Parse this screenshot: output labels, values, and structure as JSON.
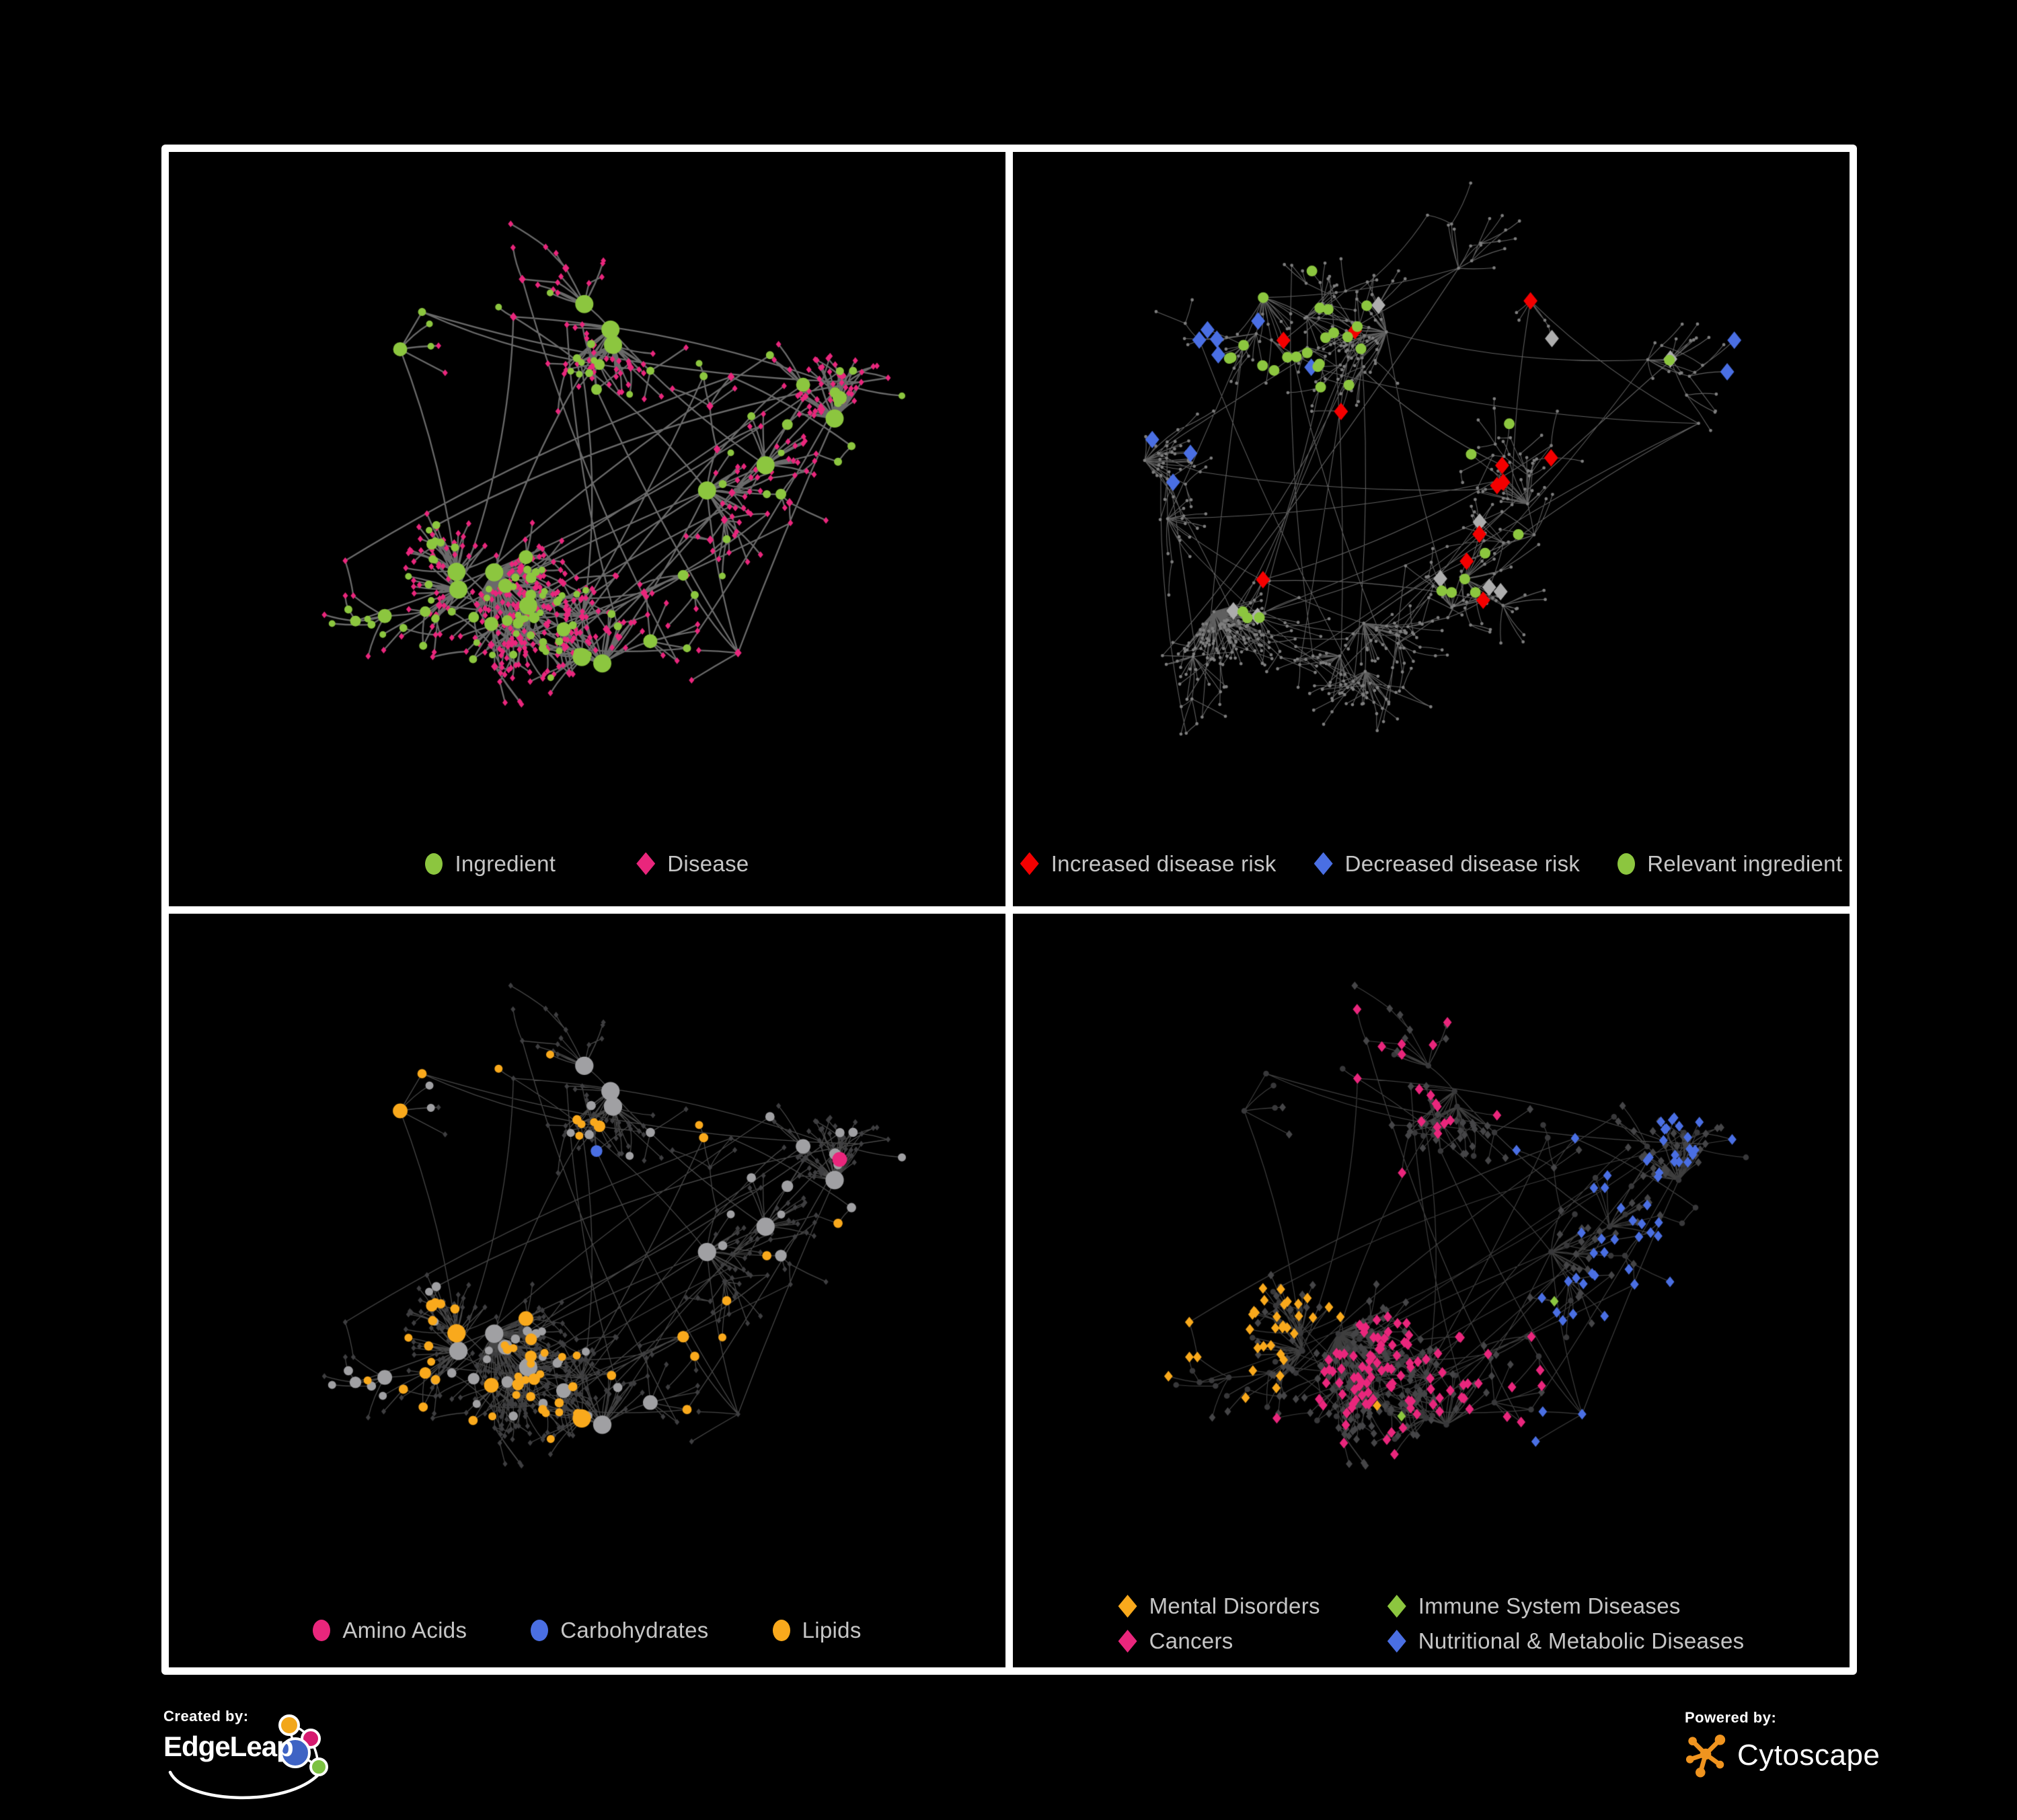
{
  "poster": {
    "background": "#000000",
    "frame_color": "#FFFFFF"
  },
  "panels": [
    {
      "name": "ingredient-disease-network",
      "legend": [
        {
          "label": "Ingredient",
          "shape": "circle",
          "color": "#8CC63F"
        },
        {
          "label": "Disease",
          "shape": "diamond",
          "color": "#E9267C"
        }
      ],
      "network": {
        "type": "node-link-graph",
        "layout": "shared",
        "seed": 7,
        "nodes": 620,
        "clusters": 14,
        "step": 54,
        "style": {
          "edge": "#757575",
          "edge_width": 2.3,
          "edge_alpha": 0.9,
          "ingredient": "#8CC63F",
          "disease": "#E9267C"
        }
      }
    },
    {
      "name": "disease-risk-network",
      "legend": [
        {
          "label": "Increased disease risk",
          "shape": "diamond",
          "color": "#F40000"
        },
        {
          "label": "Decreased disease risk",
          "shape": "diamond",
          "color": "#4A6FE3"
        },
        {
          "label": "Relevant ingredient",
          "shape": "circle",
          "color": "#8CC63F"
        }
      ],
      "network": {
        "type": "node-link-graph",
        "layout": "own",
        "seed": 23,
        "nodes": 730,
        "clusters": 16,
        "step": 50,
        "style": {
          "edge": "#696969",
          "edge_width": 1.1,
          "edge_alpha": 0.9,
          "base": "#7E7E7E",
          "increased": "#F40000",
          "decreased": "#4A6FE3",
          "neutral": "#ADADAD",
          "ingredient": "#8CC63F"
        }
      }
    },
    {
      "name": "nutrient-class-network",
      "legend": [
        {
          "label": "Amino Acids",
          "shape": "circle",
          "color": "#E9267C"
        },
        {
          "label": "Carbohydrates",
          "shape": "circle",
          "color": "#4A6FE3"
        },
        {
          "label": "Lipids",
          "shape": "circle",
          "color": "#F9A91C"
        }
      ],
      "network": {
        "type": "node-link-graph",
        "layout": "shared",
        "seed": 7,
        "nodes": 620,
        "clusters": 14,
        "step": 54,
        "style": {
          "edge": "#A8A8A8",
          "edge_width": 1.3,
          "edge_alpha": 0.42,
          "gray_circle": "#A0A0A3",
          "dark_diamond": "#3E3E40",
          "amino": "#E9267C",
          "carb": "#4A6FE3",
          "lipid": "#F9A91C"
        }
      }
    },
    {
      "name": "disease-class-network",
      "legend": [
        {
          "label": "Mental Disorders",
          "shape": "diamond",
          "color": "#F9A91C"
        },
        {
          "label": "Immune System Diseases",
          "shape": "diamond",
          "color": "#8CC63F"
        },
        {
          "label": "Cancers",
          "shape": "diamond",
          "color": "#E9267C"
        },
        {
          "label": "Nutritional & Metabolic Diseases",
          "shape": "diamond",
          "color": "#4A6FE3"
        }
      ],
      "network": {
        "type": "node-link-graph",
        "layout": "shared",
        "seed": 7,
        "nodes": 620,
        "clusters": 14,
        "step": 54,
        "style": {
          "edge": "#9A9A9A",
          "edge_width": 1.2,
          "edge_alpha": 0.4,
          "dark_circle": "#38383A",
          "dark_diamond": "#454547",
          "mental": "#F9A91C",
          "immune": "#8CC63F",
          "cancer": "#E9267C",
          "nutr": "#4A6FE3"
        }
      }
    }
  ],
  "footer": {
    "created_by": {
      "label": "Created by:",
      "brand": "EdgeLeap",
      "logo_colors": {
        "orange": "#F2A71B",
        "pink": "#D6196F",
        "blue": "#3E63C4",
        "green": "#7CC142"
      }
    },
    "powered_by": {
      "label": "Powered by:",
      "brand": "Cytoscape",
      "logo_color": "#F0941F"
    }
  }
}
